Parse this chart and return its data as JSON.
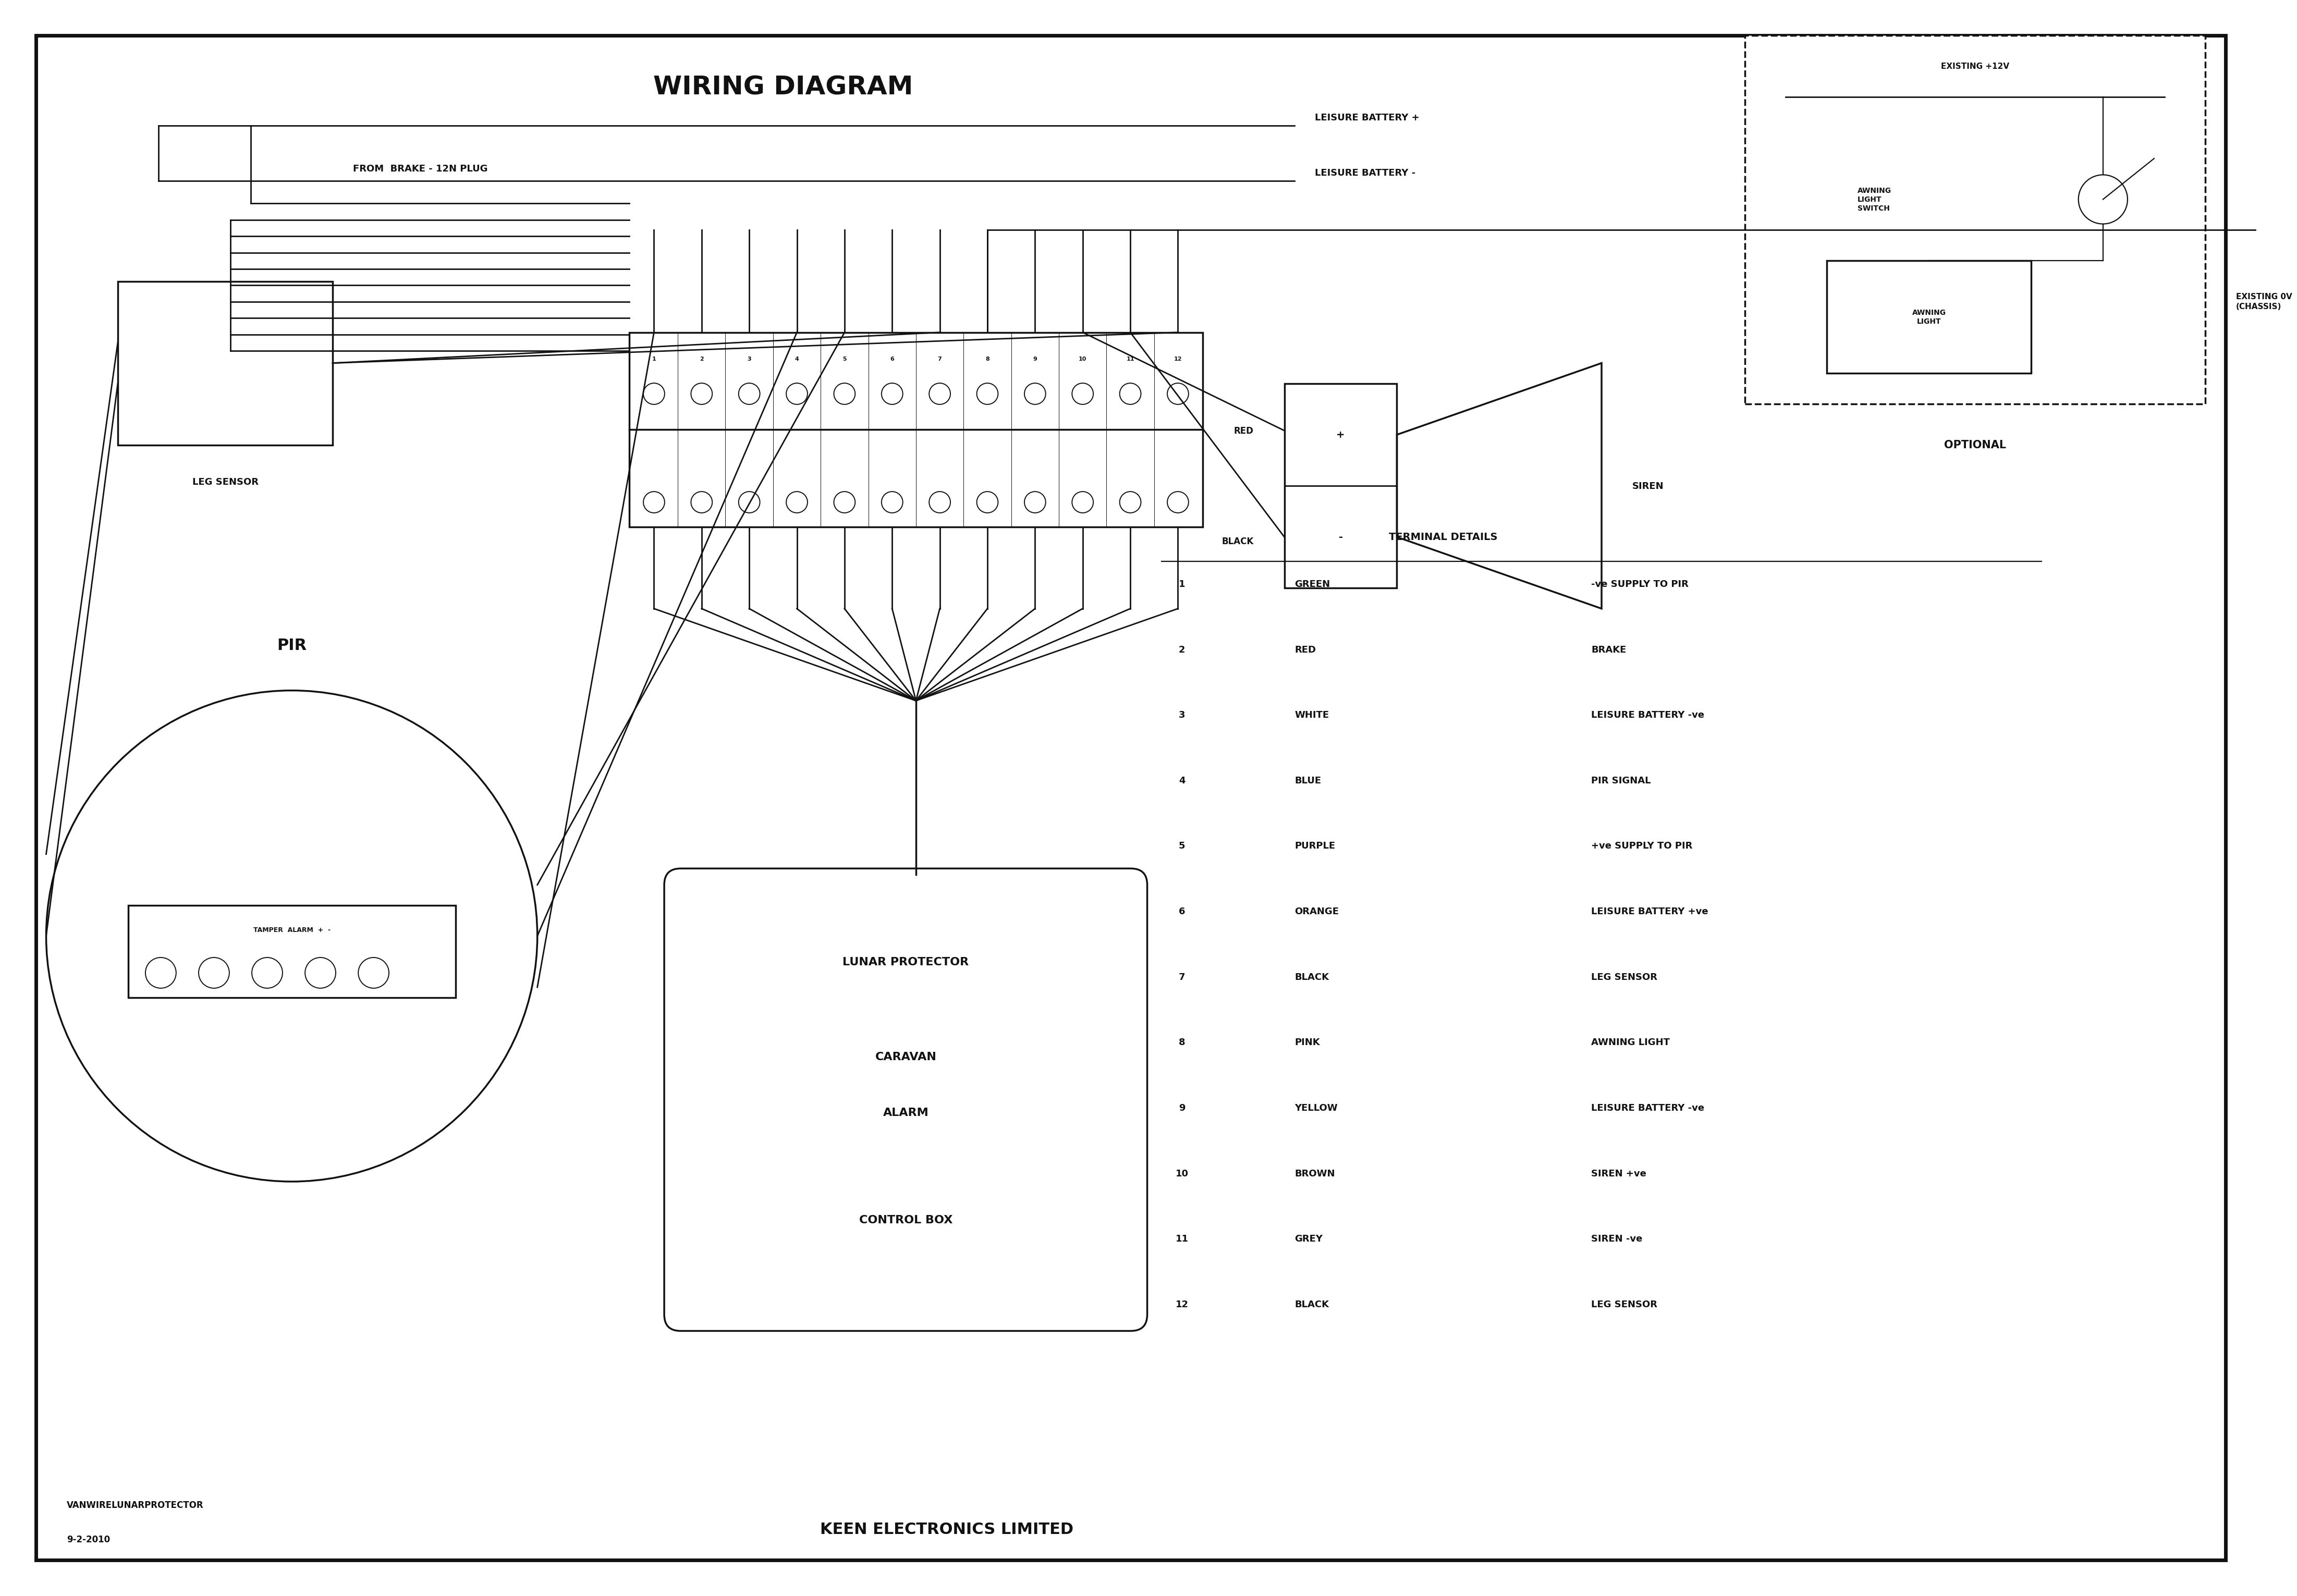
{
  "title": "WIRING DIAGRAM",
  "background_color": "#ffffff",
  "text_color": "#111111",
  "fig_width": 43.84,
  "fig_height": 30.88,
  "terminal_details_title": "TERMINAL DETAILS",
  "terminals": [
    {
      "num": "1",
      "color": "GREEN",
      "desc": "-ve SUPPLY TO PIR"
    },
    {
      "num": "2",
      "color": "RED",
      "desc": "BRAKE"
    },
    {
      "num": "3",
      "color": "WHITE",
      "desc": "LEISURE BATTERY -ve"
    },
    {
      "num": "4",
      "color": "BLUE",
      "desc": "PIR SIGNAL"
    },
    {
      "num": "5",
      "color": "PURPLE",
      "desc": "+ve SUPPLY TO PIR"
    },
    {
      "num": "6",
      "color": "ORANGE",
      "desc": "LEISURE BATTERY +ve"
    },
    {
      "num": "7",
      "color": "BLACK",
      "desc": "LEG SENSOR"
    },
    {
      "num": "8",
      "color": "PINK",
      "desc": "AWNING LIGHT"
    },
    {
      "num": "9",
      "color": "YELLOW",
      "desc": "LEISURE BATTERY -ve"
    },
    {
      "num": "10",
      "color": "BROWN",
      "desc": "SIREN +ve"
    },
    {
      "num": "11",
      "color": "GREY",
      "desc": "SIREN -ve"
    },
    {
      "num": "12",
      "color": "BLACK",
      "desc": "LEG SENSOR"
    }
  ],
  "footer_left1": "VANWIRELUNARPROTECTOR",
  "footer_left2": "9-2-2010",
  "footer_center": "KEEN ELECTRONICS LIMITED",
  "label_leisure_battery_plus": "LEISURE BATTERY +",
  "label_leisure_battery_minus": "LEISURE BATTERY -",
  "label_from_brake": "FROM  BRAKE - 12N PLUG",
  "label_leg_sensor": "LEG SENSOR",
  "label_pir": "PIR",
  "label_tamper_alarm": "TAMPER  ALARM  +  -",
  "label_cb1": "LUNAR PROTECTOR",
  "label_cb2": "CARAVAN",
  "label_cb3": "ALARM",
  "label_cb4": "CONTROL BOX",
  "label_siren": "SIREN",
  "label_red": "RED",
  "label_black": "BLACK",
  "label_optional": "OPTIONAL",
  "label_existing_12v": "EXISTING +12V",
  "label_existing_0v": "EXISTING 0V\n(CHASSIS)",
  "label_awning_switch": "AWNING\nLIGHT\nSWITCH",
  "label_awning_light": "AWNING\nLIGHT"
}
